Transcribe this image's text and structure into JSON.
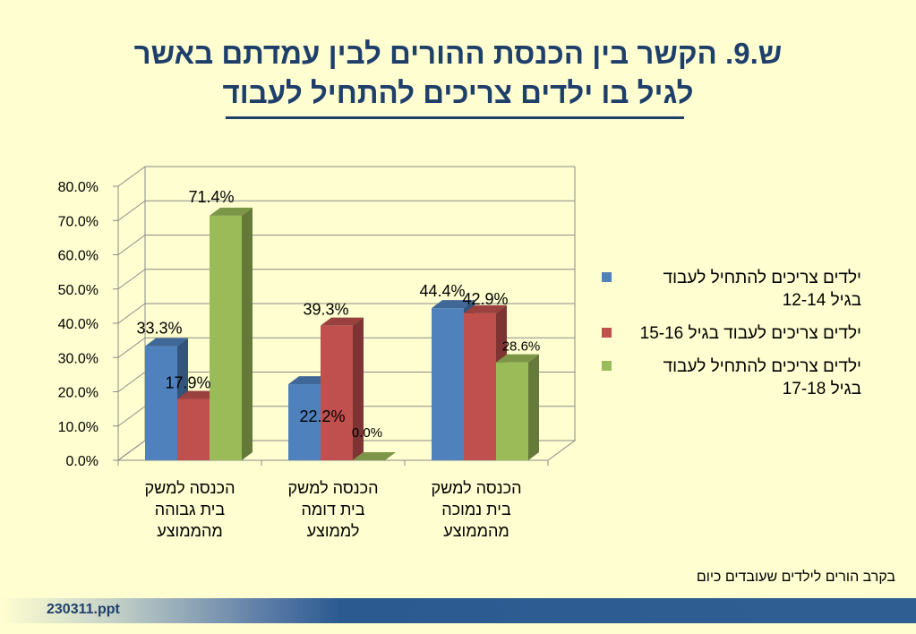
{
  "title": {
    "line1": "ש.9. הקשר בין הכנסת ההורים לבין עמדתם באשר",
    "line2": "לגיל בו ילדים צריכים להתחיל לעבוד"
  },
  "footnote": "בקרב הורים לילדים שעובדים כיום",
  "footer_label": "230311.ppt",
  "chart_data": {
    "type": "bar",
    "categories": [
      "הכנסה למשק בית גבוהה מהממוצע",
      "הכנסה למשק בית דומה לממוצע",
      "הכנסה למשק בית נמוכה מהממוצע"
    ],
    "category_lines": [
      [
        "הכנסה למשק",
        "בית גבוהה",
        "מהממוצע"
      ],
      [
        "הכנסה למשק",
        "בית דומה",
        "לממוצע"
      ],
      [
        "הכנסה למשק",
        "בית נמוכה",
        "מהממוצע"
      ]
    ],
    "series": [
      {
        "name": "ילדים צריכים להתחיל לעבוד בגיל 12-14",
        "name_lines": [
          "ילדים צריכים להתחיל לעבוד",
          "בגיל 12-14"
        ],
        "color": "#4f81bd",
        "values": [
          33.3,
          22.2,
          44.4
        ],
        "labels": [
          "33.3%",
          "22.2%",
          "44.4%"
        ]
      },
      {
        "name": "ילדים צריכים לעבוד בגיל 15-16",
        "name_lines": [
          "ילדים צריכים לעבוד בגיל 15-16"
        ],
        "color": "#c0504d",
        "values": [
          17.9,
          39.3,
          42.9
        ],
        "labels": [
          "17.9%",
          "39.3%",
          "42.9%"
        ]
      },
      {
        "name": "ילדים צריכים להתחיל לעבוד בגיל 17-18",
        "name_lines": [
          "ילדים צריכים להתחיל לעבוד",
          "בגיל 17-18"
        ],
        "color": "#9bbb59",
        "values": [
          71.4,
          0.0,
          28.6
        ],
        "labels": [
          "71.4%",
          "0.0%",
          "28.6%"
        ]
      }
    ],
    "yticks": [
      "0.0%",
      "10.0%",
      "20.0%",
      "30.0%",
      "40.0%",
      "50.0%",
      "60.0%",
      "70.0%",
      "80.0%"
    ],
    "ylim": [
      0,
      80
    ],
    "grid": true,
    "legend_position": "right",
    "bar_style": "3d"
  }
}
